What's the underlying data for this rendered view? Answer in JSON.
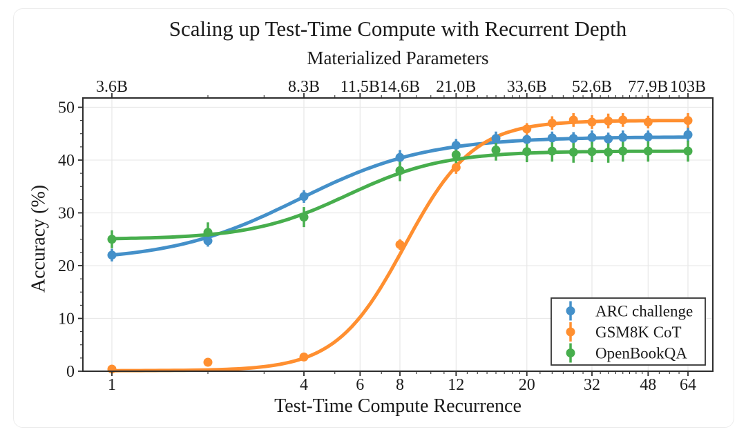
{
  "figure": {
    "title": "Scaling up Test-Time Compute with Recurrent Depth",
    "top_axis_label": "Materialized Parameters",
    "x_label": "Test-Time Compute Recurrence",
    "y_label": "Accuracy (%)"
  },
  "chart_data": {
    "type": "line",
    "title": "Scaling up Test-Time Compute with Recurrent Depth",
    "xlabel": "Test-Time Compute Recurrence",
    "ylabel": "Accuracy (%)",
    "x_scale": "log2",
    "xlim": [
      0.81,
      76
    ],
    "ylim": [
      0,
      51.7
    ],
    "grid": true,
    "legend_position": "lower right",
    "x_major_ticks": [
      1,
      4,
      6,
      8,
      12,
      20,
      32,
      48,
      64
    ],
    "x_major_labels": [
      "1",
      "4",
      "6",
      "8",
      "12",
      "20",
      "32",
      "48",
      "64"
    ],
    "x_minor_ticks": [
      2,
      3,
      5,
      7,
      9,
      10,
      11,
      13,
      14,
      15,
      16,
      17,
      18,
      19,
      22,
      24,
      26,
      28,
      30,
      34,
      36,
      38,
      40,
      42,
      44,
      46,
      52,
      56,
      60
    ],
    "y_ticks": [
      0,
      10,
      20,
      30,
      40,
      50
    ],
    "y_tick_labels": [
      "0",
      "10",
      "20",
      "30",
      "40",
      "50"
    ],
    "y_minor_ticks": [
      2.5,
      5,
      7.5,
      12.5,
      15,
      17.5,
      22.5,
      25,
      27.5,
      32.5,
      35,
      37.5,
      42.5,
      45,
      47.5
    ],
    "top_axis": {
      "label": "Materialized Parameters",
      "tick_values": [
        1,
        4,
        6,
        8,
        12,
        20,
        32,
        48,
        64
      ],
      "tick_labels": [
        "3.6B",
        "8.3B",
        "11.5B",
        "14.6B",
        "21.0B",
        "33.6B",
        "52.6B",
        "77.9B",
        "103B"
      ]
    },
    "colors": {
      "background": "#ffffff",
      "card_border": "#ececec",
      "text": "#1b1b1b",
      "grid": "#e9e9e9",
      "spine": "#2d2d2d",
      "legend_border": "#333333"
    },
    "series": [
      {
        "name": "ARC challenge",
        "color": "#4490c9",
        "x": [
          1,
          2,
          4,
          8,
          12,
          16,
          20,
          24,
          28,
          32,
          36,
          40,
          48,
          64
        ],
        "y": [
          22.0,
          24.7,
          33.1,
          40.5,
          42.8,
          44.1,
          43.9,
          44.2,
          44.1,
          44.3,
          44.0,
          44.3,
          44.4,
          44.8
        ],
        "yerr": [
          1.2,
          1.1,
          1.2,
          1.4,
          1.2,
          1.3,
          1.1,
          1.2,
          1.2,
          1.3,
          1.2,
          1.3,
          1.2,
          1.4
        ],
        "fit": {
          "lo": 20.8,
          "hi": 44.4,
          "u0": 1.95,
          "k": 1.5
        }
      },
      {
        "name": "GSM8K CoT",
        "color": "#ff8f30",
        "x": [
          1,
          2,
          4,
          8,
          12,
          20,
          24,
          28,
          32,
          36,
          40,
          48,
          64
        ],
        "y": [
          0.4,
          1.7,
          2.7,
          24.0,
          38.6,
          45.9,
          47.0,
          47.6,
          47.2,
          47.4,
          47.6,
          47.2,
          47.5
        ],
        "yerr": [
          0.3,
          0.5,
          0.6,
          1.0,
          1.2,
          1.1,
          1.3,
          1.3,
          1.3,
          1.4,
          1.3,
          1.2,
          1.4
        ],
        "fit": {
          "lo": 0.1,
          "hi": 47.5,
          "u0": 3.05,
          "k": 2.8
        }
      },
      {
        "name": "OpenBookQA",
        "color": "#47ae4d",
        "x": [
          1,
          2,
          4,
          8,
          12,
          16,
          20,
          24,
          28,
          32,
          36,
          40,
          48,
          64
        ],
        "y": [
          25.0,
          26.3,
          29.2,
          38.0,
          41.0,
          41.9,
          41.6,
          41.7,
          41.5,
          41.6,
          41.5,
          41.7,
          41.7,
          41.7
        ],
        "yerr": [
          1.7,
          1.9,
          1.9,
          2.0,
          1.8,
          2.0,
          2.0,
          2.0,
          2.0,
          2.0,
          2.0,
          2.0,
          2.0,
          2.0
        ],
        "fit": {
          "lo": 25.0,
          "hi": 41.7,
          "u0": 2.45,
          "k": 2.0
        }
      }
    ]
  }
}
